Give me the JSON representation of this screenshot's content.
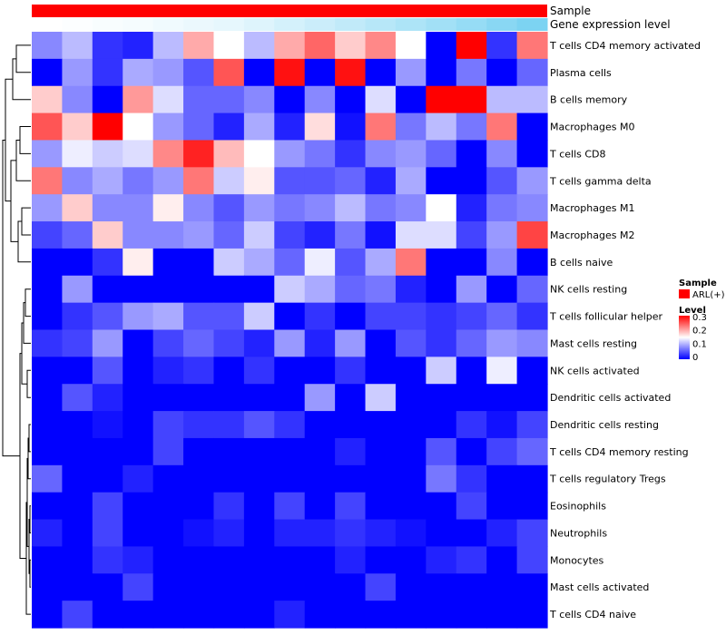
{
  "chart_data": {
    "type": "heatmap",
    "title": "",
    "rows": [
      "T cells CD4 memory activated",
      "Plasma cells",
      "B cells memory",
      "Macrophages M0",
      "T cells CD8",
      "T cells gamma delta",
      "Macrophages M1",
      "Macrophages M2",
      "B cells naive",
      "NK cells resting",
      "T cells follicular helper",
      "Mast cells resting",
      "NK cells activated",
      "Dendritic cells activated",
      "Dendritic cells resting",
      "T cells CD4 memory resting",
      "T cells regulatory  Tregs",
      "Eosinophils",
      "Neutrophils",
      "Monocytes",
      "Mast cells activated",
      "T cells CD4 naive"
    ],
    "columns_count": 17,
    "values": [
      [
        0.08,
        0.11,
        0.03,
        0.02,
        0.11,
        0.2,
        0.15,
        0.11,
        0.2,
        0.24,
        0.18,
        0.22,
        0.15,
        0.0,
        0.3,
        0.03,
        0.23
      ],
      [
        0.0,
        0.09,
        0.03,
        0.1,
        0.09,
        0.05,
        0.25,
        0.0,
        0.29,
        0.0,
        0.29,
        0.0,
        0.09,
        0.0,
        0.07,
        0.0,
        0.06
      ],
      [
        0.18,
        0.08,
        0.0,
        0.21,
        0.13,
        0.06,
        0.06,
        0.08,
        0.0,
        0.08,
        0.0,
        0.13,
        0.0,
        0.3,
        0.3,
        0.11,
        0.11
      ],
      [
        0.25,
        0.18,
        0.3,
        0.15,
        0.09,
        0.06,
        0.02,
        0.1,
        0.02,
        0.17,
        0.01,
        0.23,
        0.07,
        0.11,
        0.07,
        0.23,
        0.0
      ],
      [
        0.09,
        0.14,
        0.12,
        0.13,
        0.22,
        0.28,
        0.19,
        0.15,
        0.09,
        0.07,
        0.03,
        0.08,
        0.09,
        0.06,
        0.0,
        0.08,
        0.0
      ],
      [
        0.23,
        0.08,
        0.1,
        0.07,
        0.09,
        0.23,
        0.12,
        0.16,
        0.05,
        0.05,
        0.06,
        0.02,
        0.1,
        0.0,
        0.0,
        0.05,
        0.09
      ],
      [
        0.09,
        0.18,
        0.08,
        0.08,
        0.16,
        0.08,
        0.05,
        0.09,
        0.07,
        0.08,
        0.11,
        0.07,
        0.08,
        0.15,
        0.02,
        0.07,
        0.08
      ],
      [
        0.04,
        0.06,
        0.18,
        0.08,
        0.08,
        0.09,
        0.06,
        0.12,
        0.04,
        0.02,
        0.07,
        0.01,
        0.13,
        0.13,
        0.04,
        0.09,
        0.26
      ],
      [
        0.0,
        0.0,
        0.03,
        0.16,
        0.0,
        0.0,
        0.12,
        0.1,
        0.06,
        0.14,
        0.05,
        0.1,
        0.23,
        0.0,
        0.0,
        0.08,
        0.0
      ],
      [
        0.0,
        0.09,
        0.0,
        0.0,
        0.0,
        0.0,
        0.0,
        0.0,
        0.12,
        0.1,
        0.06,
        0.07,
        0.02,
        0.0,
        0.09,
        0.0,
        0.06
      ],
      [
        0.0,
        0.03,
        0.05,
        0.09,
        0.1,
        0.05,
        0.05,
        0.12,
        0.0,
        0.03,
        0.0,
        0.04,
        0.04,
        0.03,
        0.04,
        0.06,
        0.03
      ],
      [
        0.03,
        0.04,
        0.09,
        0.0,
        0.04,
        0.06,
        0.04,
        0.02,
        0.09,
        0.02,
        0.09,
        0.0,
        0.05,
        0.03,
        0.06,
        0.09,
        0.08
      ],
      [
        0.0,
        0.0,
        0.05,
        0.0,
        0.02,
        0.03,
        0.0,
        0.03,
        0.0,
        0.0,
        0.03,
        0.0,
        0.0,
        0.12,
        0.0,
        0.14,
        0.0
      ],
      [
        0.0,
        0.05,
        0.02,
        0.0,
        0.0,
        0.0,
        0.0,
        0.0,
        0.0,
        0.09,
        0.0,
        0.12,
        0.0,
        0.0,
        0.0,
        0.0,
        0.0
      ],
      [
        0.0,
        0.0,
        0.01,
        0.0,
        0.04,
        0.03,
        0.03,
        0.05,
        0.03,
        0.0,
        0.0,
        0.0,
        0.0,
        0.0,
        0.03,
        0.01,
        0.04
      ],
      [
        0.0,
        0.0,
        0.0,
        0.0,
        0.04,
        0.0,
        0.0,
        0.0,
        0.0,
        0.0,
        0.02,
        0.0,
        0.0,
        0.05,
        0.0,
        0.04,
        0.06
      ],
      [
        0.06,
        0.0,
        0.0,
        0.02,
        0.0,
        0.0,
        0.0,
        0.0,
        0.0,
        0.0,
        0.0,
        0.0,
        0.0,
        0.07,
        0.03,
        0.0,
        0.0
      ],
      [
        0.0,
        0.0,
        0.04,
        0.0,
        0.0,
        0.0,
        0.03,
        0.0,
        0.04,
        0.0,
        0.04,
        0.0,
        0.0,
        0.0,
        0.04,
        0.0,
        0.0
      ],
      [
        0.02,
        0.0,
        0.04,
        0.0,
        0.0,
        0.01,
        0.02,
        0.0,
        0.02,
        0.02,
        0.03,
        0.02,
        0.01,
        0.0,
        0.0,
        0.02,
        0.04
      ],
      [
        0.0,
        0.0,
        0.03,
        0.02,
        0.0,
        0.0,
        0.0,
        0.0,
        0.0,
        0.0,
        0.02,
        0.0,
        0.0,
        0.02,
        0.03,
        0.0,
        0.04
      ],
      [
        0.0,
        0.0,
        0.0,
        0.04,
        0.0,
        0.0,
        0.0,
        0.0,
        0.0,
        0.0,
        0.0,
        0.04,
        0.0,
        0.0,
        0.0,
        0.0,
        0.0
      ],
      [
        0.0,
        0.04,
        0.0,
        0.0,
        0.0,
        0.0,
        0.0,
        0.0,
        0.02,
        0.0,
        0.0,
        0.0,
        0.0,
        0.0,
        0.0,
        0.0,
        0.0
      ]
    ],
    "color_scale": {
      "min": 0,
      "max": 0.3,
      "low": "#0000ff",
      "mid": "#ffffff",
      "high": "#ff0000"
    },
    "annotations": [
      {
        "name": "Sample",
        "color": "#ff0000"
      },
      {
        "name": "Gene expression level",
        "levels": [
          0.0,
          0.02,
          0.04,
          0.06,
          0.09,
          0.12,
          0.15,
          0.2,
          0.26,
          0.32,
          0.38,
          0.44,
          0.5,
          0.57,
          0.64,
          0.72,
          0.8
        ],
        "low_color": "#ffffff",
        "high_color": "#5bc8ef"
      }
    ],
    "legend": {
      "position": "right",
      "sample": {
        "title": "Sample",
        "label": "ARL(+)",
        "color": "#ff0000"
      },
      "level": {
        "title": "Level",
        "ticks": [
          "0.3",
          "0.2",
          "0.1",
          "0"
        ]
      }
    },
    "dendrogram": "rows"
  }
}
